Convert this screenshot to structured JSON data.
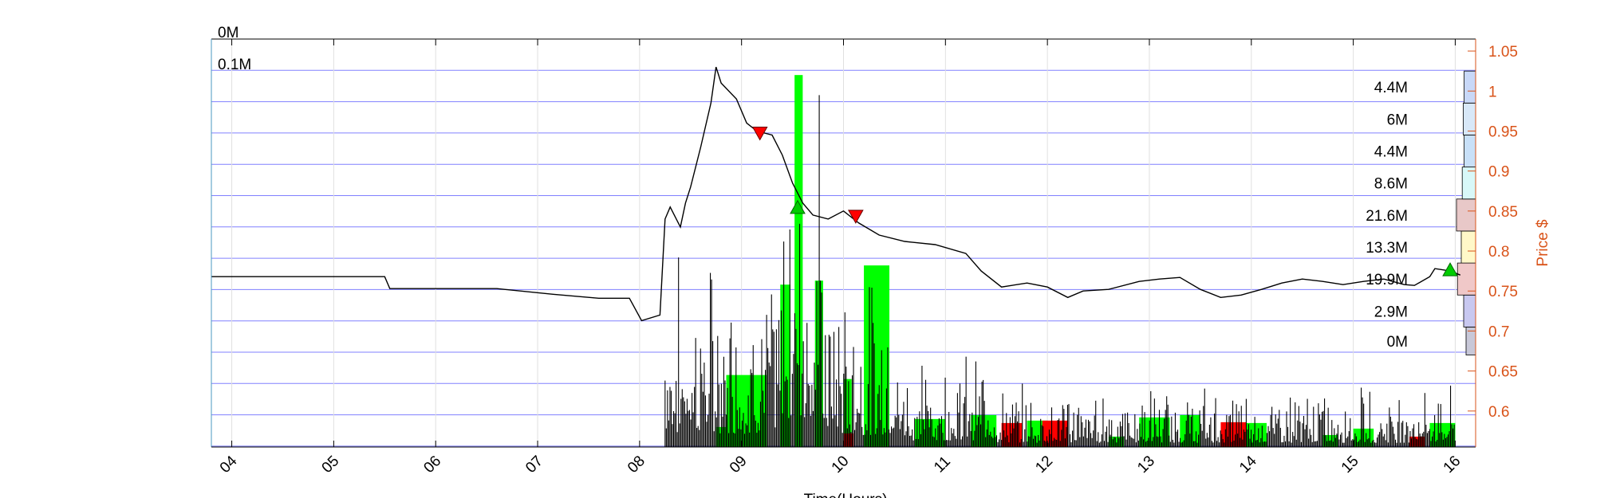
{
  "chart_data": {
    "type": "line",
    "xlabel": "Time(Hours)",
    "ylabel": "Price $",
    "xlim": [
      3.8,
      16.2
    ],
    "ylim": [
      0.555,
      1.065
    ],
    "grid": true,
    "x_ticks": [
      "04",
      "05",
      "06",
      "07",
      "08",
      "09",
      "10",
      "11",
      "12",
      "13",
      "14",
      "15",
      "16"
    ],
    "y_ticks": [
      "0.6",
      "0.65",
      "0.7",
      "0.75",
      "0.8",
      "0.85",
      "0.9",
      "0.95",
      "1",
      "1.05"
    ],
    "left_axis_labels": [
      "0M",
      "0.1M"
    ],
    "price_series": {
      "name": "Price",
      "points": [
        [
          3.8,
          0.768
        ],
        [
          4.6,
          0.768
        ],
        [
          4.95,
          0.768
        ],
        [
          5.5,
          0.768
        ],
        [
          5.55,
          0.753
        ],
        [
          6.6,
          0.753
        ],
        [
          7.15,
          0.746
        ],
        [
          7.6,
          0.741
        ],
        [
          7.9,
          0.741
        ],
        [
          8.02,
          0.713
        ],
        [
          8.2,
          0.72
        ],
        [
          8.25,
          0.84
        ],
        [
          8.3,
          0.855
        ],
        [
          8.4,
          0.83
        ],
        [
          8.45,
          0.86
        ],
        [
          8.5,
          0.88
        ],
        [
          8.6,
          0.93
        ],
        [
          8.7,
          0.985
        ],
        [
          8.75,
          1.03
        ],
        [
          8.8,
          1.01
        ],
        [
          8.95,
          0.99
        ],
        [
          9.05,
          0.96
        ],
        [
          9.15,
          0.95
        ],
        [
          9.3,
          0.945
        ],
        [
          9.4,
          0.92
        ],
        [
          9.5,
          0.885
        ],
        [
          9.6,
          0.86
        ],
        [
          9.7,
          0.845
        ],
        [
          9.85,
          0.84
        ],
        [
          10.0,
          0.85
        ],
        [
          10.15,
          0.835
        ],
        [
          10.35,
          0.82
        ],
        [
          10.6,
          0.812
        ],
        [
          10.9,
          0.808
        ],
        [
          11.2,
          0.797
        ],
        [
          11.35,
          0.775
        ],
        [
          11.55,
          0.755
        ],
        [
          11.8,
          0.76
        ],
        [
          12.0,
          0.755
        ],
        [
          12.2,
          0.742
        ],
        [
          12.35,
          0.75
        ],
        [
          12.6,
          0.752
        ],
        [
          12.9,
          0.762
        ],
        [
          13.1,
          0.765
        ],
        [
          13.3,
          0.767
        ],
        [
          13.5,
          0.752
        ],
        [
          13.7,
          0.742
        ],
        [
          13.9,
          0.745
        ],
        [
          14.1,
          0.752
        ],
        [
          14.3,
          0.76
        ],
        [
          14.5,
          0.765
        ],
        [
          14.7,
          0.762
        ],
        [
          14.9,
          0.758
        ],
        [
          15.1,
          0.762
        ],
        [
          15.3,
          0.765
        ],
        [
          15.5,
          0.758
        ],
        [
          15.6,
          0.757
        ],
        [
          15.75,
          0.768
        ],
        [
          15.8,
          0.778
        ],
        [
          15.95,
          0.775
        ],
        [
          16.05,
          0.77
        ]
      ]
    },
    "sell_markers": [
      [
        9.18,
        0.947
      ],
      [
        10.12,
        0.843
      ]
    ],
    "buy_markers": [
      [
        9.55,
        0.855
      ],
      [
        15.95,
        0.777
      ]
    ],
    "volume_bars_green": [
      {
        "x0": 8.75,
        "x1": 8.85,
        "v": 0.58
      },
      {
        "x0": 8.85,
        "x1": 9.25,
        "v": 0.645
      },
      {
        "x0": 9.38,
        "x1": 9.48,
        "v": 0.758
      },
      {
        "x0": 9.52,
        "x1": 9.6,
        "v": 1.02
      },
      {
        "x0": 9.72,
        "x1": 9.8,
        "v": 0.763
      },
      {
        "x0": 10.0,
        "x1": 10.08,
        "v": 0.64
      },
      {
        "x0": 10.2,
        "x1": 10.45,
        "v": 0.782
      },
      {
        "x0": 10.7,
        "x1": 11.0,
        "v": 0.59
      },
      {
        "x0": 11.25,
        "x1": 11.5,
        "v": 0.595
      },
      {
        "x0": 11.8,
        "x1": 12.0,
        "v": 0.588
      },
      {
        "x0": 12.6,
        "x1": 12.75,
        "v": 0.568
      },
      {
        "x0": 12.9,
        "x1": 13.2,
        "v": 0.592
      },
      {
        "x0": 13.3,
        "x1": 13.5,
        "v": 0.595
      },
      {
        "x0": 13.9,
        "x1": 14.15,
        "v": 0.585
      },
      {
        "x0": 14.7,
        "x1": 14.85,
        "v": 0.57
      },
      {
        "x0": 15.0,
        "x1": 15.2,
        "v": 0.578
      },
      {
        "x0": 15.75,
        "x1": 16.0,
        "v": 0.585
      }
    ],
    "volume_bars_red": [
      {
        "x0": 10.0,
        "x1": 10.1,
        "v": 0.572
      },
      {
        "x0": 11.55,
        "x1": 11.75,
        "v": 0.585
      },
      {
        "x0": 11.95,
        "x1": 12.2,
        "v": 0.588
      },
      {
        "x0": 13.7,
        "x1": 13.95,
        "v": 0.586
      },
      {
        "x0": 15.55,
        "x1": 15.7,
        "v": 0.568
      }
    ],
    "volume_profile": [
      {
        "label": "0M",
        "lo": 0.67,
        "hi": 0.705,
        "w": 0.2,
        "color": "#c8c8d8"
      },
      {
        "label": "2.9M",
        "lo": 0.705,
        "hi": 0.745,
        "w": 0.25,
        "color": "#c8c8f0"
      },
      {
        "label": "19.9M",
        "lo": 0.745,
        "hi": 0.785,
        "w": 0.38,
        "color": "#f0c8c8"
      },
      {
        "label": "13.3M",
        "lo": 0.785,
        "hi": 0.825,
        "w": 0.3,
        "color": "#fff8c8"
      },
      {
        "label": "21.6M",
        "lo": 0.825,
        "hi": 0.865,
        "w": 0.4,
        "color": "#e8c8c8"
      },
      {
        "label": "8.6M",
        "lo": 0.865,
        "hi": 0.905,
        "w": 0.28,
        "color": "#d8f8f8"
      },
      {
        "label": "4.4M",
        "lo": 0.905,
        "hi": 0.945,
        "w": 0.24,
        "color": "#c8e0f8"
      },
      {
        "label": "6M",
        "lo": 0.945,
        "hi": 0.985,
        "w": 0.26,
        "color": "#d8e8f8"
      },
      {
        "label": "4.4M",
        "lo": 0.985,
        "hi": 1.025,
        "w": 0.24,
        "color": "#c8d8f8"
      }
    ],
    "colors": {
      "price": "#000000",
      "buy_volume": "#00ff00",
      "sell_volume": "#ff0000",
      "grid_h": "#8080ff",
      "right_axis": "#d95319",
      "buy_marker": "#00cc00",
      "sell_marker": "#ff0000"
    }
  }
}
